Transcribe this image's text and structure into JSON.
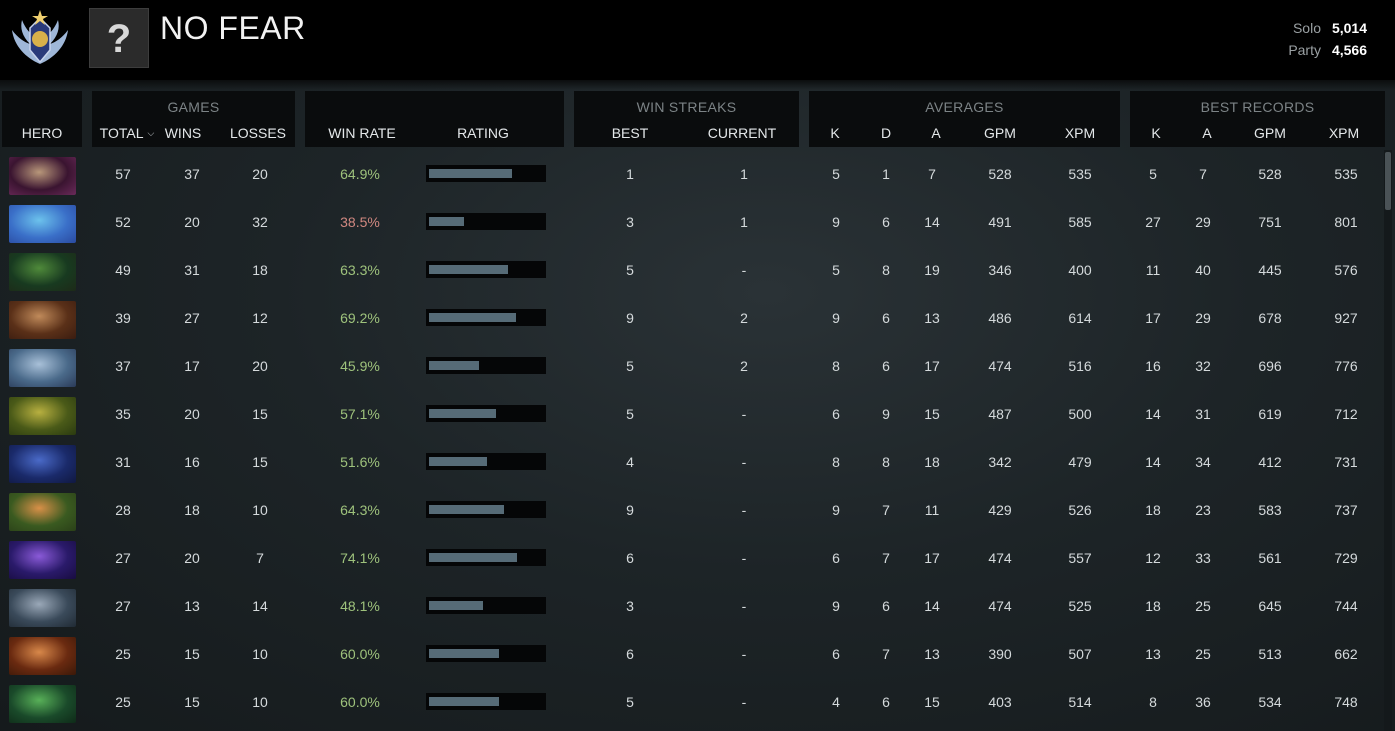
{
  "player": {
    "name": "NO FEAR",
    "avatar_placeholder": "?",
    "medal_icon": "divine-medal-icon",
    "mmr": {
      "solo_label": "Solo",
      "solo_value": "5,014",
      "party_label": "Party",
      "party_value": "4,566"
    }
  },
  "colors": {
    "positive": "#9ec27c",
    "negative": "#d08880",
    "bar": "#566b77"
  },
  "headers": {
    "hero": "HERO",
    "games": {
      "title": "GAMES",
      "total": "TOTAL",
      "wins": "WINS",
      "losses": "LOSSES"
    },
    "win_rate": "WIN RATE",
    "rating": "RATING",
    "streaks": {
      "title": "WIN STREAKS",
      "best": "BEST",
      "current": "CURRENT"
    },
    "averages": {
      "title": "AVERAGES",
      "k": "K",
      "d": "D",
      "a": "A",
      "gpm": "GPM",
      "xpm": "XPM"
    },
    "best_records": {
      "title": "BEST RECORDS",
      "k": "K",
      "a": "A",
      "gpm": "GPM",
      "xpm": "XPM"
    }
  },
  "rows": [
    {
      "hero_icon": "invoker-portrait-icon",
      "portrait": [
        "#3a1430",
        "#b8977a",
        "#6a2a5a"
      ],
      "total": "57",
      "wins": "37",
      "losses": "20",
      "win_rate": "64.9%",
      "good": true,
      "rating": 0.73,
      "best": "1",
      "current": "1",
      "avg_k": "5",
      "avg_d": "1",
      "avg_a": "7",
      "gpm": "528",
      "xpm": "535",
      "best_k": "5",
      "best_a": "7",
      "best_gpm": "528",
      "best_xpm": "535"
    },
    {
      "hero_icon": "puck-portrait-icon",
      "portrait": [
        "#3a6fc8",
        "#6cc2ec",
        "#2a4aa0"
      ],
      "total": "52",
      "wins": "20",
      "losses": "32",
      "win_rate": "38.5%",
      "good": false,
      "rating": 0.31,
      "best": "3",
      "current": "1",
      "avg_k": "9",
      "avg_d": "6",
      "avg_a": "14",
      "gpm": "491",
      "xpm": "585",
      "best_k": "27",
      "best_a": "29",
      "best_gpm": "751",
      "best_xpm": "801"
    },
    {
      "hero_icon": "venomancer-portrait-icon",
      "portrait": [
        "#183a20",
        "#4f8a3a",
        "#1d2a18"
      ],
      "total": "49",
      "wins": "31",
      "losses": "18",
      "win_rate": "63.3%",
      "good": true,
      "rating": 0.69,
      "best": "5",
      "current": "-",
      "avg_k": "5",
      "avg_d": "8",
      "avg_a": "19",
      "gpm": "346",
      "xpm": "400",
      "best_k": "11",
      "best_a": "40",
      "best_gpm": "445",
      "best_xpm": "576"
    },
    {
      "hero_icon": "witch-doctor-portrait-icon",
      "portrait": [
        "#5a3018",
        "#c08a5a",
        "#3a1c10"
      ],
      "total": "39",
      "wins": "27",
      "losses": "12",
      "win_rate": "69.2%",
      "good": true,
      "rating": 0.76,
      "best": "9",
      "current": "2",
      "avg_k": "9",
      "avg_d": "6",
      "avg_a": "13",
      "gpm": "486",
      "xpm": "614",
      "best_k": "17",
      "best_a": "29",
      "best_gpm": "678",
      "best_xpm": "927"
    },
    {
      "hero_icon": "mirana-portrait-icon",
      "portrait": [
        "#4a6a8a",
        "#a8c0d8",
        "#2a3a58"
      ],
      "total": "37",
      "wins": "17",
      "losses": "20",
      "win_rate": "45.9%",
      "good": true,
      "rating": 0.44,
      "best": "5",
      "current": "2",
      "avg_k": "8",
      "avg_d": "6",
      "avg_a": "17",
      "gpm": "474",
      "xpm": "516",
      "best_k": "16",
      "best_a": "32",
      "best_gpm": "696",
      "best_xpm": "776"
    },
    {
      "hero_icon": "nature-prophet-portrait-icon",
      "portrait": [
        "#4a5a18",
        "#b8b040",
        "#2a3a10"
      ],
      "total": "35",
      "wins": "20",
      "losses": "15",
      "win_rate": "57.1%",
      "good": true,
      "rating": 0.59,
      "best": "5",
      "current": "-",
      "avg_k": "6",
      "avg_d": "9",
      "avg_a": "15",
      "gpm": "487",
      "xpm": "500",
      "best_k": "14",
      "best_a": "31",
      "best_gpm": "619",
      "best_xpm": "712"
    },
    {
      "hero_icon": "riki-portrait-icon",
      "portrait": [
        "#1a2a6a",
        "#4a6ac8",
        "#101840"
      ],
      "total": "31",
      "wins": "16",
      "losses": "15",
      "win_rate": "51.6%",
      "good": true,
      "rating": 0.51,
      "best": "4",
      "current": "-",
      "avg_k": "8",
      "avg_d": "8",
      "avg_a": "18",
      "gpm": "342",
      "xpm": "479",
      "best_k": "14",
      "best_a": "34",
      "best_gpm": "412",
      "best_xpm": "731"
    },
    {
      "hero_icon": "windranger-portrait-icon",
      "portrait": [
        "#3a5a20",
        "#d89048",
        "#2a4018"
      ],
      "total": "28",
      "wins": "18",
      "losses": "10",
      "win_rate": "64.3%",
      "good": true,
      "rating": 0.66,
      "best": "9",
      "current": "-",
      "avg_k": "9",
      "avg_d": "7",
      "avg_a": "11",
      "gpm": "429",
      "xpm": "526",
      "best_k": "18",
      "best_a": "23",
      "best_gpm": "583",
      "best_xpm": "737"
    },
    {
      "hero_icon": "faceless-void-portrait-icon",
      "portrait": [
        "#2a1a6a",
        "#8a5ad8",
        "#180c40"
      ],
      "total": "27",
      "wins": "20",
      "losses": "7",
      "win_rate": "74.1%",
      "good": true,
      "rating": 0.77,
      "best": "6",
      "current": "-",
      "avg_k": "6",
      "avg_d": "7",
      "avg_a": "17",
      "gpm": "474",
      "xpm": "557",
      "best_k": "12",
      "best_a": "33",
      "best_gpm": "561",
      "best_xpm": "729"
    },
    {
      "hero_icon": "tinker-portrait-icon",
      "portrait": [
        "#3a4a5a",
        "#9aa8b8",
        "#202a34"
      ],
      "total": "27",
      "wins": "13",
      "losses": "14",
      "win_rate": "48.1%",
      "good": true,
      "rating": 0.47,
      "best": "3",
      "current": "-",
      "avg_k": "9",
      "avg_d": "6",
      "avg_a": "14",
      "gpm": "474",
      "xpm": "525",
      "best_k": "18",
      "best_a": "25",
      "best_gpm": "645",
      "best_xpm": "744"
    },
    {
      "hero_icon": "earthshaker-portrait-icon",
      "portrait": [
        "#6a2a10",
        "#d8884a",
        "#3a1808"
      ],
      "total": "25",
      "wins": "15",
      "losses": "10",
      "win_rate": "60.0%",
      "good": true,
      "rating": 0.61,
      "best": "6",
      "current": "-",
      "avg_k": "6",
      "avg_d": "7",
      "avg_a": "13",
      "gpm": "390",
      "xpm": "507",
      "best_k": "13",
      "best_a": "25",
      "best_gpm": "513",
      "best_xpm": "662"
    },
    {
      "hero_icon": "viper-portrait-icon",
      "portrait": [
        "#1a4a2a",
        "#58b058",
        "#0e2a18"
      ],
      "total": "25",
      "wins": "15",
      "losses": "10",
      "win_rate": "60.0%",
      "good": true,
      "rating": 0.61,
      "best": "5",
      "current": "-",
      "avg_k": "4",
      "avg_d": "6",
      "avg_a": "15",
      "gpm": "403",
      "xpm": "514",
      "best_k": "8",
      "best_a": "36",
      "best_gpm": "534",
      "best_xpm": "748"
    }
  ]
}
